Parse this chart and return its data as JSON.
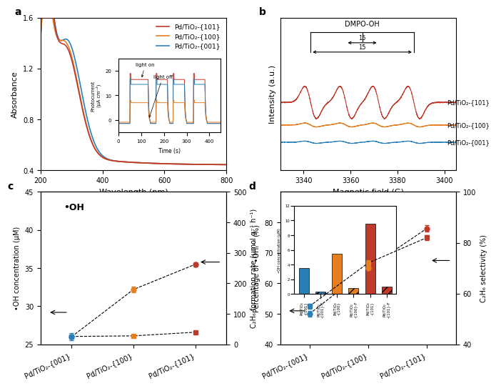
{
  "colors": {
    "red": "#C0392B",
    "orange": "#E67E22",
    "blue": "#2980B9"
  },
  "panel_a": {
    "xlabel": "Wavelength (nm)",
    "ylabel": "Absorbance",
    "xlim": [
      200,
      800
    ],
    "ylim": [
      0.4,
      1.6
    ],
    "yticks": [
      0.4,
      0.8,
      1.2,
      1.6
    ],
    "xticks": [
      200,
      400,
      600,
      800
    ],
    "legend": [
      "Pd/TiO₂-{101}",
      "Pd/TiO₂-{100}",
      "Pd/TiO₂-{001}"
    ]
  },
  "panel_b": {
    "xlabel": "Magnetic field (G)",
    "ylabel": "Intensity (a.u.)",
    "xlim": [
      3330,
      3405
    ],
    "xticks": [
      3340,
      3360,
      3380,
      3400
    ],
    "labels": [
      "Pd/TiO₂-{101}",
      "Pd/TiO₂-{100}",
      "Pd/TiO₂-{001}"
    ]
  },
  "panel_c": {
    "ylabel_left": "•OH concentration (μM)",
    "ylabel_right": "C₂H₆ formation rate (μmol g⁻¹ h⁻¹)",
    "categories": [
      "Pd/TiO₂-{001}",
      "Pd/TiO₂-{100}",
      "Pd/TiO₂-{101}"
    ],
    "oh_conc": [
      26.0,
      32.2,
      35.5
    ],
    "oh_err": [
      0.5,
      0.4,
      0.3
    ],
    "c2h6_rate": [
      26.0,
      28.0,
      40.0
    ],
    "c2h6_err": [
      0.5,
      0.5,
      1.5
    ],
    "ylim_left": [
      25,
      45
    ],
    "ylim_right": [
      0,
      500
    ],
    "yticks_left": [
      25,
      30,
      35,
      40,
      45
    ],
    "yticks_right": [
      0,
      100,
      200,
      300,
      400,
      500
    ]
  },
  "panel_d": {
    "ylabel_left": "Percentage of •OHₜᴬˣ (%)",
    "ylabel_right": "C₂H₆ selectivity (%)",
    "categories": [
      "Pd/TiO₂-{001}",
      "Pd/TiO₂-{100}",
      "Pd/TiO₂-{101}"
    ],
    "oh_pct": [
      50,
      65,
      78
    ],
    "oh_err": [
      1.0,
      1.0,
      1.0
    ],
    "c2h6_sel": [
      55,
      72,
      82
    ],
    "c2h6_err": [
      1.0,
      1.0,
      1.0
    ],
    "ylim_left": [
      40,
      90
    ],
    "ylim_right": [
      40,
      100
    ],
    "yticks_left": [
      40,
      50,
      60,
      70,
      80
    ],
    "yticks_right": [
      40,
      60,
      80,
      100
    ],
    "inset_categories": [
      "Pd/TiO₂\n-{001}",
      "Pd/TiO₂\n-{001}-F",
      "Pd/TiO₂\n-{100}",
      "Pd/TiO₂\n-{100}-F",
      "Pd/TiO₂\n-{101}",
      "Pd/TiO₂\n-{101}-F"
    ],
    "inset_values": [
      3.5,
      0.3,
      5.5,
      0.8,
      9.5,
      1.0
    ],
    "inset_colors": [
      "#2980B9",
      "#2980B9",
      "#E67E22",
      "#E67E22",
      "#C0392B",
      "#C0392B"
    ],
    "inset_hatches": [
      "",
      "///",
      "",
      "///",
      "",
      "///"
    ]
  }
}
